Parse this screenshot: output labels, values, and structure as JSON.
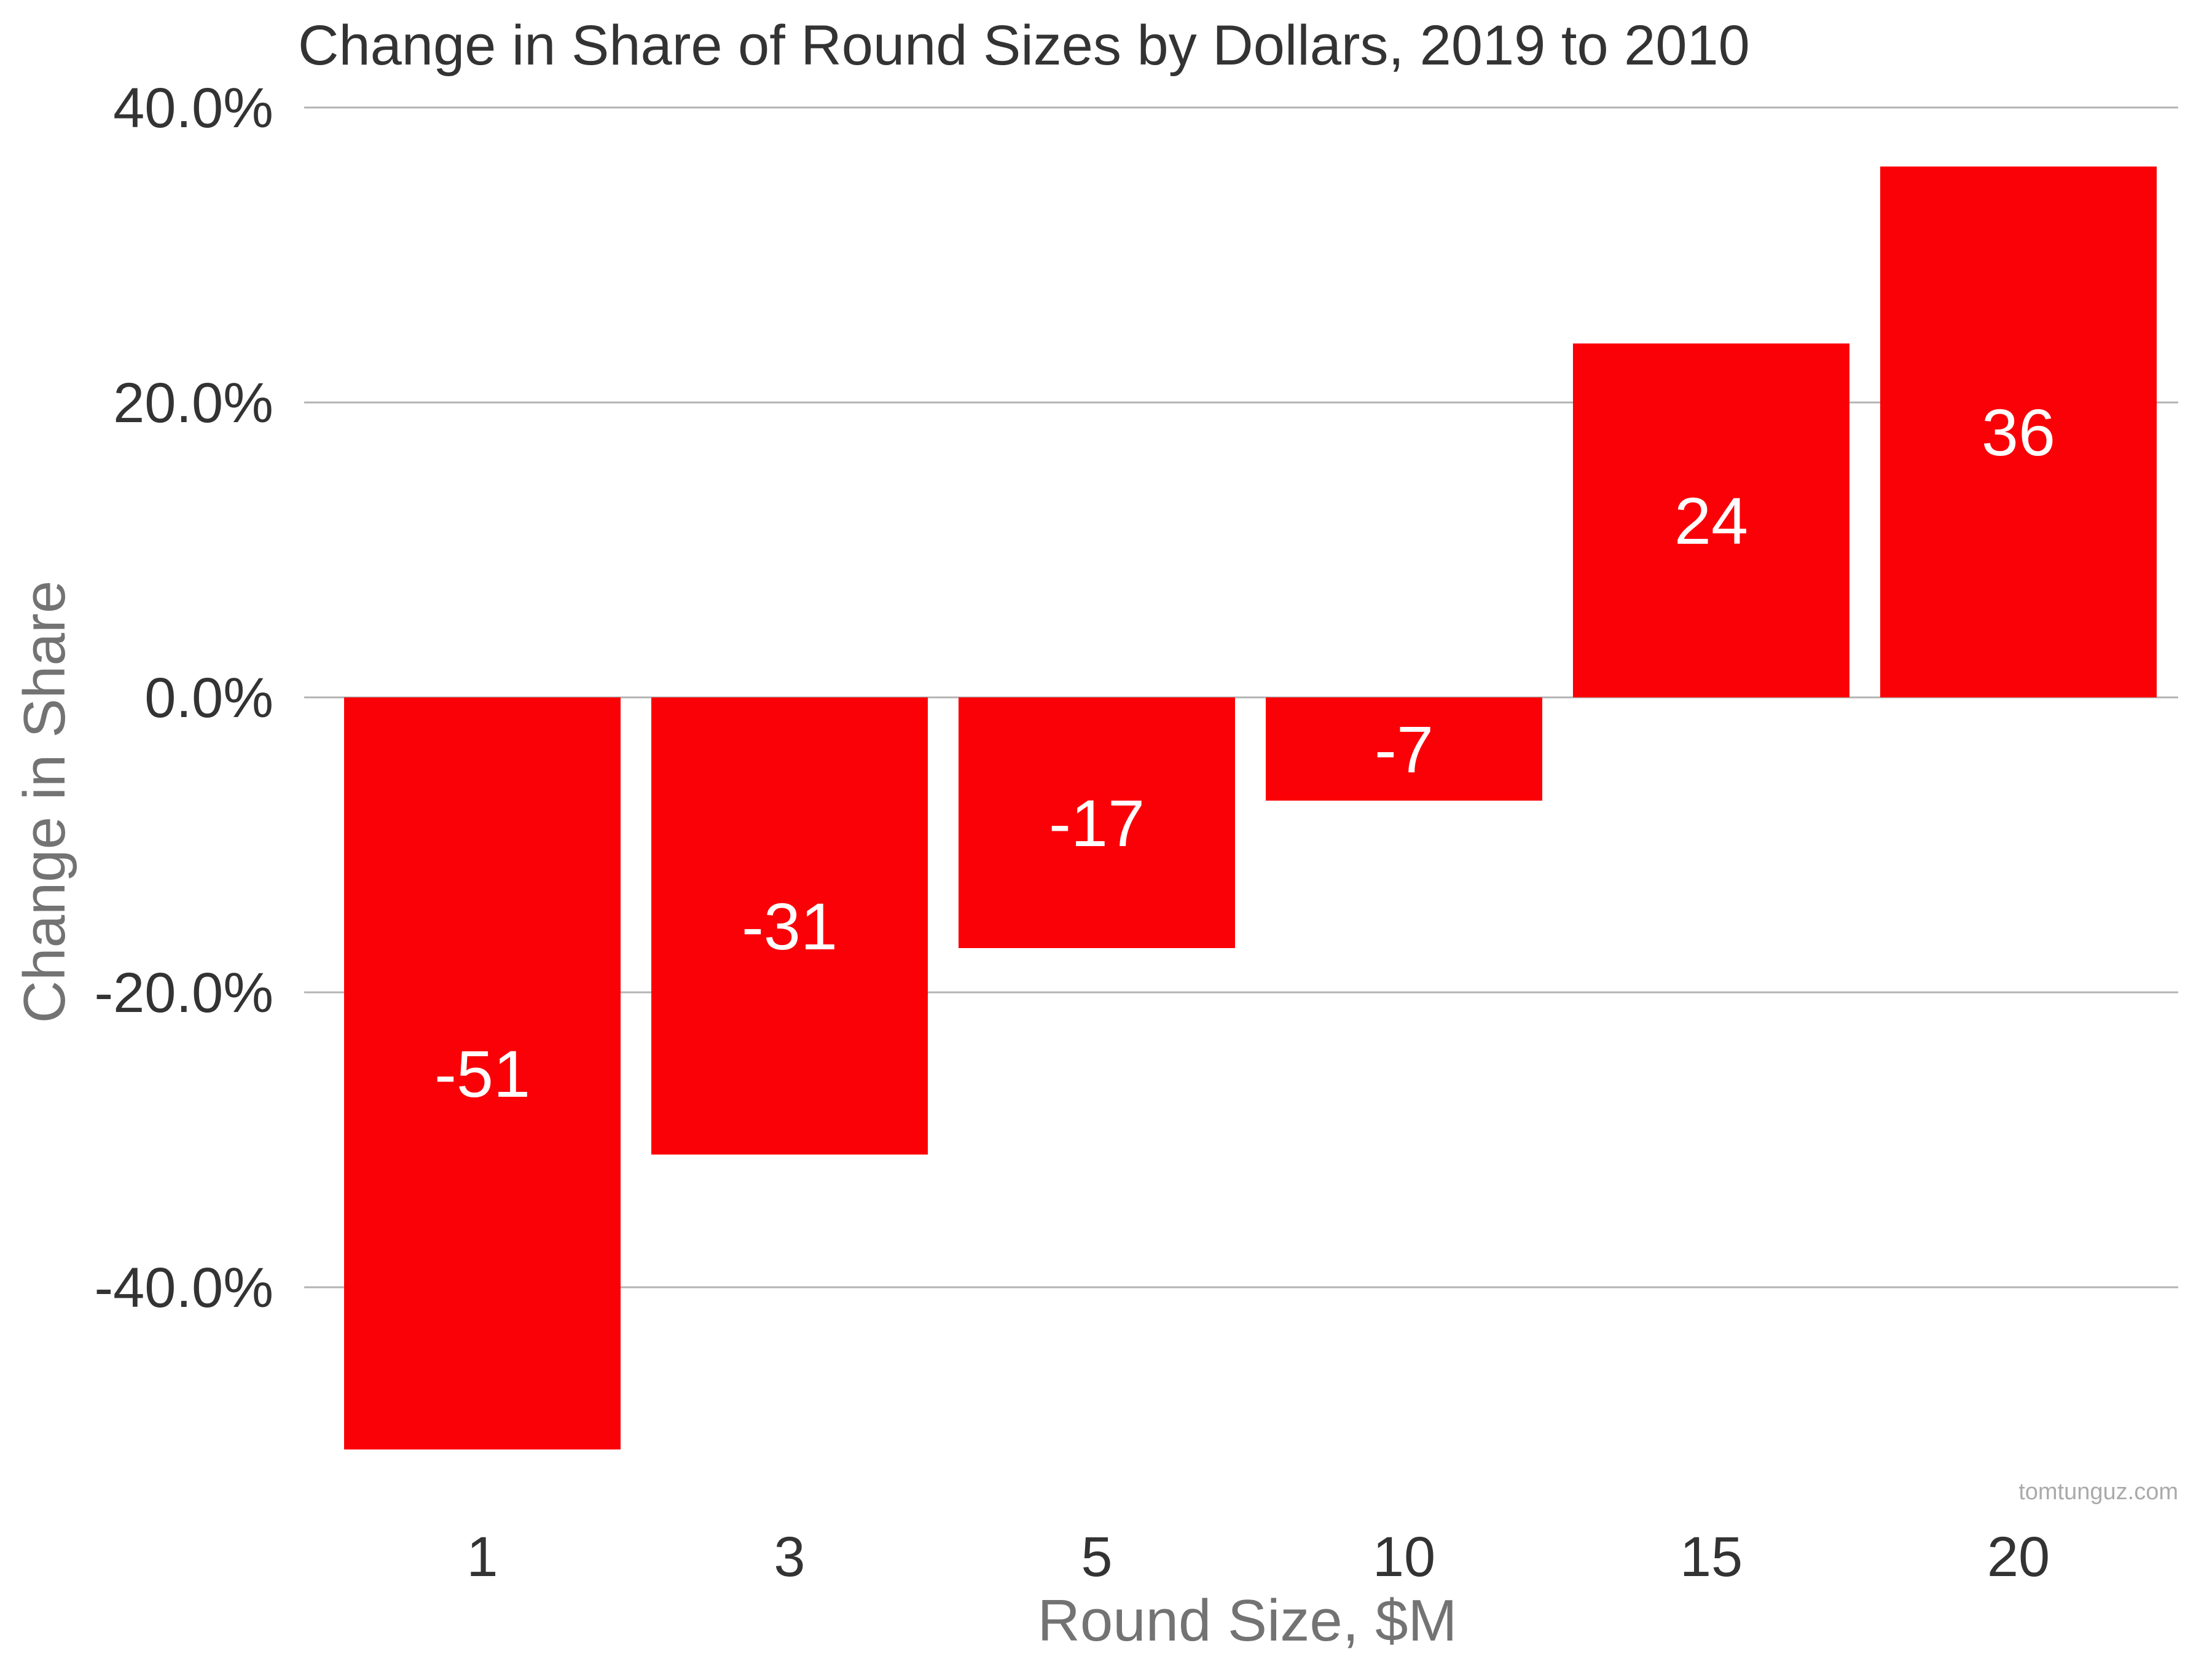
{
  "chart_data": {
    "type": "bar",
    "title": "Change in Share of Round Sizes by Dollars, 2019 to 2010",
    "xlabel": "Round Size, $M",
    "ylabel": "Change in Share",
    "categories": [
      "1",
      "3",
      "5",
      "10",
      "15",
      "20"
    ],
    "values": [
      -51,
      -31,
      -17,
      -7,
      24,
      36
    ],
    "data_labels": [
      "-51",
      "-31",
      "-17",
      "-7",
      "24",
      "36"
    ],
    "y_ticks": [
      40,
      20,
      0,
      -20,
      -40
    ],
    "y_tick_labels": [
      "40.0%",
      "20.0%",
      "0.0%",
      "-20.0%",
      "-40.0%"
    ],
    "ylim": [
      -53,
      40
    ],
    "grid": true,
    "legend": "none",
    "bar_color": "#fa0007"
  },
  "watermark": "tomtunguz.com"
}
